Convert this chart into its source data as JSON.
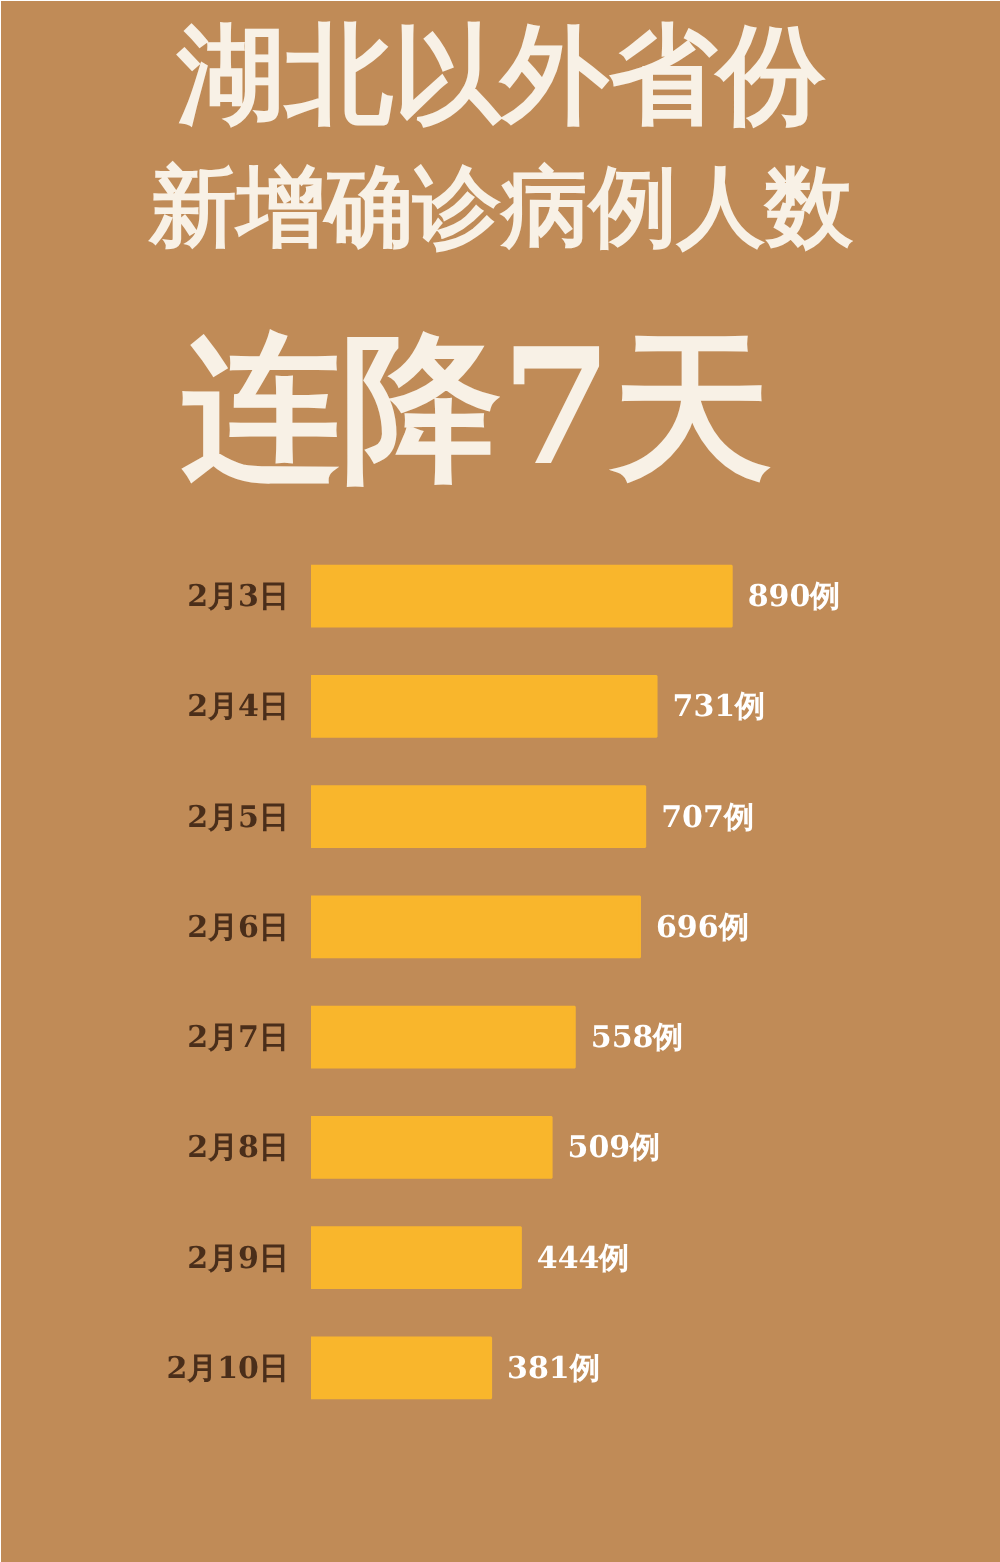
{
  "chart_data": {
    "type": "bar",
    "orientation": "horizontal",
    "title": "湖北以外省份",
    "subtitle": "新增确诊病例人数",
    "annotations": [
      "连降7天"
    ],
    "categories": [
      "2月3日",
      "2月4日",
      "2月5日",
      "2月6日",
      "2月7日",
      "2月8日",
      "2月9日",
      "2月10日"
    ],
    "values": [
      890,
      731,
      707,
      696,
      558,
      509,
      444,
      381
    ],
    "value_labels": [
      "890例",
      "731例",
      "707例",
      "696例",
      "558例",
      "509例",
      "444例",
      "381例"
    ],
    "color": "#f9b62c",
    "grid": false
  }
}
